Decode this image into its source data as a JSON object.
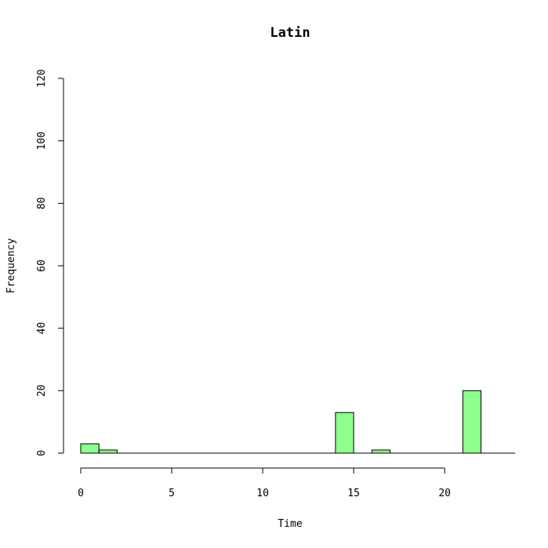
{
  "chart_data": {
    "type": "bar",
    "title": "Latin",
    "xlabel": "Time",
    "ylabel": "Frequency",
    "bar_color": "#8cff8c",
    "xlim": [
      0,
      24
    ],
    "ylim": [
      0,
      120
    ],
    "xticks": [
      0,
      5,
      10,
      15,
      20
    ],
    "yticks": [
      0,
      20,
      40,
      60,
      80,
      100,
      120
    ],
    "bins": [
      {
        "start": 0,
        "end": 1,
        "value": 3
      },
      {
        "start": 1,
        "end": 2,
        "value": 1
      },
      {
        "start": 2,
        "end": 3,
        "value": 0
      },
      {
        "start": 3,
        "end": 4,
        "value": 0
      },
      {
        "start": 4,
        "end": 5,
        "value": 0
      },
      {
        "start": 5,
        "end": 6,
        "value": 0
      },
      {
        "start": 6,
        "end": 7,
        "value": 0
      },
      {
        "start": 7,
        "end": 8,
        "value": 0
      },
      {
        "start": 8,
        "end": 9,
        "value": 0
      },
      {
        "start": 9,
        "end": 10,
        "value": 0
      },
      {
        "start": 10,
        "end": 11,
        "value": 0
      },
      {
        "start": 11,
        "end": 12,
        "value": 0
      },
      {
        "start": 12,
        "end": 13,
        "value": 0
      },
      {
        "start": 13,
        "end": 14,
        "value": 0
      },
      {
        "start": 14,
        "end": 15,
        "value": 13
      },
      {
        "start": 15,
        "end": 16,
        "value": 0
      },
      {
        "start": 16,
        "end": 17,
        "value": 1
      },
      {
        "start": 17,
        "end": 18,
        "value": 0
      },
      {
        "start": 18,
        "end": 19,
        "value": 0
      },
      {
        "start": 19,
        "end": 20,
        "value": 0
      },
      {
        "start": 20,
        "end": 21,
        "value": 0
      },
      {
        "start": 21,
        "end": 22,
        "value": 20
      },
      {
        "start": 22,
        "end": 23,
        "value": 0
      },
      {
        "start": 23,
        "end": 24,
        "value": 0
      }
    ]
  }
}
